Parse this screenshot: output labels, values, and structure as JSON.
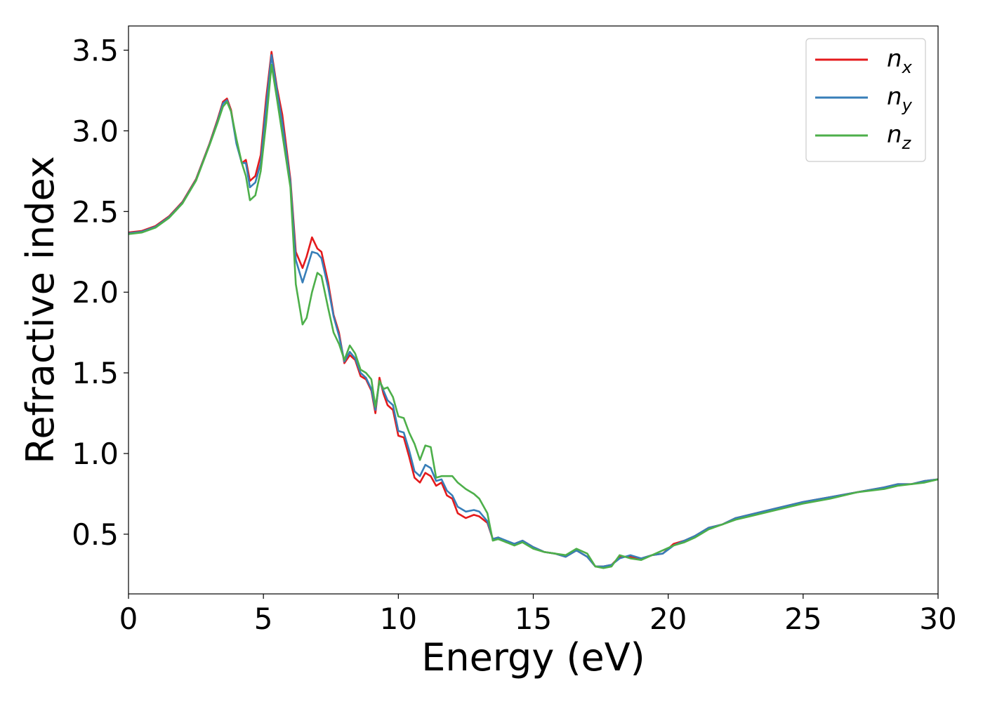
{
  "chart_data": {
    "type": "line",
    "xlabel": "Energy (eV)",
    "ylabel": "Refractive index",
    "xlim": [
      0,
      30
    ],
    "ylim": [
      0.13,
      3.65
    ],
    "xticks": [
      0,
      5,
      10,
      15,
      20,
      25,
      30
    ],
    "xtick_labels": [
      "0",
      "5",
      "10",
      "15",
      "20",
      "25",
      "30"
    ],
    "yticks": [
      0.5,
      1.0,
      1.5,
      2.0,
      2.5,
      3.0,
      3.5
    ],
    "ytick_labels": [
      "0.5",
      "1.0",
      "1.5",
      "2.0",
      "2.5",
      "3.0",
      "3.5"
    ],
    "grid": false,
    "legend_position": "top-right",
    "series": [
      {
        "name": "n_x",
        "label_base": "n",
        "label_sub": "x",
        "color": "#e41a1c",
        "x": [
          0,
          0.5,
          1,
          1.5,
          2,
          2.5,
          3,
          3.3,
          3.5,
          3.65,
          3.8,
          4.0,
          4.2,
          4.35,
          4.5,
          4.7,
          4.9,
          5.1,
          5.3,
          5.5,
          5.7,
          6.0,
          6.2,
          6.45,
          6.6,
          6.8,
          7.0,
          7.15,
          7.4,
          7.6,
          7.8,
          8.0,
          8.2,
          8.4,
          8.6,
          8.8,
          9.0,
          9.15,
          9.3,
          9.45,
          9.6,
          9.8,
          10.0,
          10.2,
          10.4,
          10.6,
          10.8,
          11.0,
          11.2,
          11.4,
          11.6,
          11.8,
          12.0,
          12.2,
          12.5,
          12.8,
          13.0,
          13.3,
          13.5,
          13.7,
          14.0,
          14.3,
          14.6,
          15.0,
          15.4,
          15.8,
          16.2,
          16.6,
          17.0,
          17.3,
          17.6,
          17.9,
          18.2,
          18.6,
          19.0,
          19.4,
          19.8,
          20.2,
          20.6,
          21.0,
          21.5,
          22.0,
          22.5,
          23.0,
          24.0,
          25.0,
          26.0,
          27.0,
          28.0,
          28.5,
          29.0,
          29.5,
          30.0
        ],
        "y": [
          2.37,
          2.38,
          2.41,
          2.47,
          2.56,
          2.7,
          2.92,
          3.07,
          3.18,
          3.2,
          3.13,
          2.93,
          2.8,
          2.82,
          2.69,
          2.72,
          2.85,
          3.2,
          3.49,
          3.27,
          3.1,
          2.7,
          2.25,
          2.15,
          2.22,
          2.34,
          2.27,
          2.25,
          2.06,
          1.86,
          1.75,
          1.56,
          1.61,
          1.58,
          1.48,
          1.46,
          1.39,
          1.25,
          1.47,
          1.37,
          1.3,
          1.27,
          1.11,
          1.1,
          0.98,
          0.85,
          0.82,
          0.88,
          0.86,
          0.8,
          0.82,
          0.74,
          0.72,
          0.63,
          0.6,
          0.62,
          0.61,
          0.57,
          0.47,
          0.48,
          0.45,
          0.44,
          0.46,
          0.42,
          0.39,
          0.38,
          0.36,
          0.4,
          0.36,
          0.3,
          0.3,
          0.31,
          0.36,
          0.36,
          0.35,
          0.37,
          0.38,
          0.44,
          0.46,
          0.49,
          0.54,
          0.56,
          0.6,
          0.62,
          0.66,
          0.7,
          0.73,
          0.76,
          0.79,
          0.81,
          0.81,
          0.83,
          0.84
        ]
      },
      {
        "name": "n_y",
        "label_base": "n",
        "label_sub": "y",
        "color": "#377eb8",
        "x": [
          0,
          0.5,
          1,
          1.5,
          2,
          2.5,
          3,
          3.3,
          3.5,
          3.65,
          3.8,
          4.0,
          4.2,
          4.35,
          4.5,
          4.7,
          4.9,
          5.1,
          5.3,
          5.5,
          5.7,
          6.0,
          6.2,
          6.45,
          6.6,
          6.8,
          7.0,
          7.15,
          7.4,
          7.6,
          7.8,
          8.0,
          8.2,
          8.4,
          8.6,
          8.8,
          9.0,
          9.15,
          9.3,
          9.45,
          9.6,
          9.8,
          10.0,
          10.2,
          10.4,
          10.6,
          10.8,
          11.0,
          11.2,
          11.4,
          11.6,
          11.8,
          12.0,
          12.2,
          12.5,
          12.8,
          13.0,
          13.3,
          13.5,
          13.7,
          14.0,
          14.3,
          14.6,
          15.0,
          15.4,
          15.8,
          16.2,
          16.6,
          17.0,
          17.3,
          17.6,
          17.9,
          18.2,
          18.6,
          19.0,
          19.4,
          19.8,
          20.2,
          20.6,
          21.0,
          21.5,
          22.0,
          22.5,
          23.0,
          24.0,
          25.0,
          26.0,
          27.0,
          28.0,
          28.5,
          29.0,
          29.5,
          30.0
        ],
        "y": [
          2.365,
          2.375,
          2.405,
          2.465,
          2.555,
          2.695,
          2.915,
          3.06,
          3.17,
          3.19,
          3.12,
          2.92,
          2.8,
          2.8,
          2.65,
          2.68,
          2.8,
          3.15,
          3.47,
          3.25,
          3.05,
          2.68,
          2.2,
          2.06,
          2.14,
          2.25,
          2.24,
          2.21,
          2.03,
          1.85,
          1.73,
          1.57,
          1.63,
          1.59,
          1.5,
          1.47,
          1.4,
          1.27,
          1.45,
          1.39,
          1.33,
          1.3,
          1.14,
          1.13,
          1.02,
          0.89,
          0.86,
          0.93,
          0.91,
          0.83,
          0.84,
          0.77,
          0.74,
          0.67,
          0.64,
          0.65,
          0.64,
          0.58,
          0.47,
          0.48,
          0.46,
          0.44,
          0.46,
          0.42,
          0.39,
          0.38,
          0.36,
          0.4,
          0.36,
          0.3,
          0.3,
          0.31,
          0.35,
          0.37,
          0.35,
          0.37,
          0.38,
          0.43,
          0.46,
          0.49,
          0.54,
          0.56,
          0.6,
          0.62,
          0.66,
          0.7,
          0.73,
          0.76,
          0.79,
          0.81,
          0.81,
          0.83,
          0.84
        ]
      },
      {
        "name": "n_z",
        "label_base": "n",
        "label_sub": "z",
        "color": "#4daf4a",
        "x": [
          0,
          0.5,
          1,
          1.5,
          2,
          2.5,
          3,
          3.3,
          3.5,
          3.65,
          3.8,
          4.0,
          4.2,
          4.35,
          4.5,
          4.7,
          4.9,
          5.1,
          5.3,
          5.5,
          5.7,
          6.0,
          6.2,
          6.45,
          6.6,
          6.8,
          7.0,
          7.15,
          7.4,
          7.6,
          7.8,
          8.0,
          8.2,
          8.4,
          8.6,
          8.8,
          9.0,
          9.15,
          9.3,
          9.45,
          9.6,
          9.8,
          10.0,
          10.2,
          10.4,
          10.6,
          10.8,
          11.0,
          11.2,
          11.4,
          11.6,
          11.8,
          12.0,
          12.2,
          12.5,
          12.8,
          13.0,
          13.3,
          13.5,
          13.7,
          14.0,
          14.3,
          14.6,
          15.0,
          15.4,
          15.8,
          16.2,
          16.6,
          17.0,
          17.3,
          17.6,
          17.9,
          18.2,
          18.6,
          19.0,
          19.4,
          19.8,
          20.2,
          20.6,
          21.0,
          21.5,
          22.0,
          22.5,
          23.0,
          24.0,
          25.0,
          26.0,
          27.0,
          28.0,
          28.5,
          29.0,
          29.5,
          30.0
        ],
        "y": [
          2.36,
          2.37,
          2.4,
          2.46,
          2.55,
          2.69,
          2.91,
          3.05,
          3.15,
          3.18,
          3.12,
          2.95,
          2.8,
          2.72,
          2.57,
          2.6,
          2.75,
          3.05,
          3.41,
          3.2,
          2.98,
          2.65,
          2.05,
          1.8,
          1.84,
          2.0,
          2.12,
          2.1,
          1.9,
          1.75,
          1.68,
          1.58,
          1.67,
          1.62,
          1.52,
          1.5,
          1.46,
          1.29,
          1.45,
          1.4,
          1.41,
          1.35,
          1.23,
          1.22,
          1.13,
          1.06,
          0.96,
          1.05,
          1.04,
          0.85,
          0.86,
          0.86,
          0.86,
          0.82,
          0.78,
          0.75,
          0.72,
          0.63,
          0.46,
          0.47,
          0.45,
          0.43,
          0.45,
          0.41,
          0.39,
          0.38,
          0.37,
          0.41,
          0.38,
          0.3,
          0.29,
          0.3,
          0.37,
          0.35,
          0.34,
          0.37,
          0.4,
          0.43,
          0.45,
          0.48,
          0.53,
          0.56,
          0.59,
          0.61,
          0.65,
          0.69,
          0.72,
          0.76,
          0.78,
          0.8,
          0.81,
          0.82,
          0.84
        ]
      }
    ]
  }
}
